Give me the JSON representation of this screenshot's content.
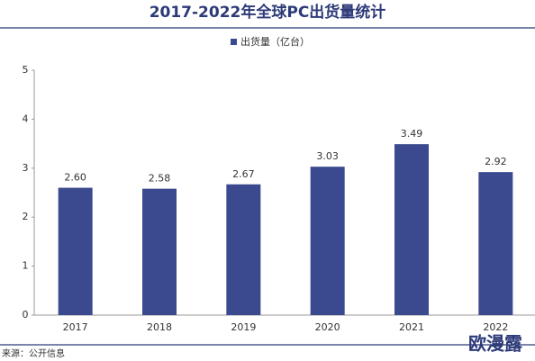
{
  "chart_data": {
    "type": "bar",
    "title": "2017-2022年全球PC出货量统计",
    "categories": [
      "2017",
      "2018",
      "2019",
      "2020",
      "2021",
      "2022"
    ],
    "series": [
      {
        "name": "出货量（亿台）",
        "color": "#3b4a8e",
        "values": [
          2.6,
          2.58,
          2.67,
          3.03,
          3.49,
          2.92
        ]
      }
    ],
    "value_labels": [
      "2.60",
      "2.58",
      "2.67",
      "3.03",
      "3.49",
      "2.92"
    ],
    "ylim": [
      0,
      5
    ],
    "yticks": [
      0,
      1,
      2,
      3,
      4,
      5
    ],
    "grid": false,
    "legend": "top",
    "source": "来源：公开信息",
    "watermark": "欧漫露"
  }
}
